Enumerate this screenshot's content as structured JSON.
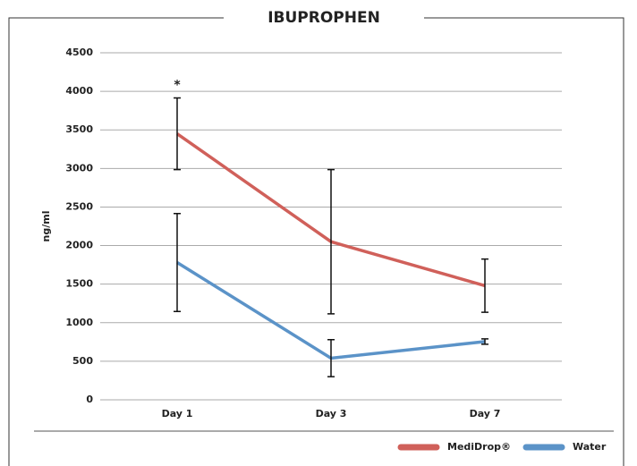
{
  "chart_data": {
    "type": "line",
    "title": "IBUPROPHEN",
    "y_label": "ng/ml",
    "categories": [
      "Day 1",
      "Day 3",
      "Day 7"
    ],
    "series": [
      {
        "name": "MediDrop®",
        "color": "#d0605a",
        "values": [
          3450,
          2050,
          1480
        ],
        "errors": [
          465,
          935,
          345
        ]
      },
      {
        "name": "Water",
        "color": "#5b93c8",
        "values": [
          1780,
          540,
          755
        ],
        "errors": [
          635,
          240,
          35
        ]
      }
    ],
    "annotation": "*",
    "ylim": [
      0,
      4500
    ],
    "yticks": [
      0,
      500,
      1000,
      1500,
      2000,
      2500,
      3000,
      3500,
      4000,
      4500
    ],
    "grid": true
  }
}
